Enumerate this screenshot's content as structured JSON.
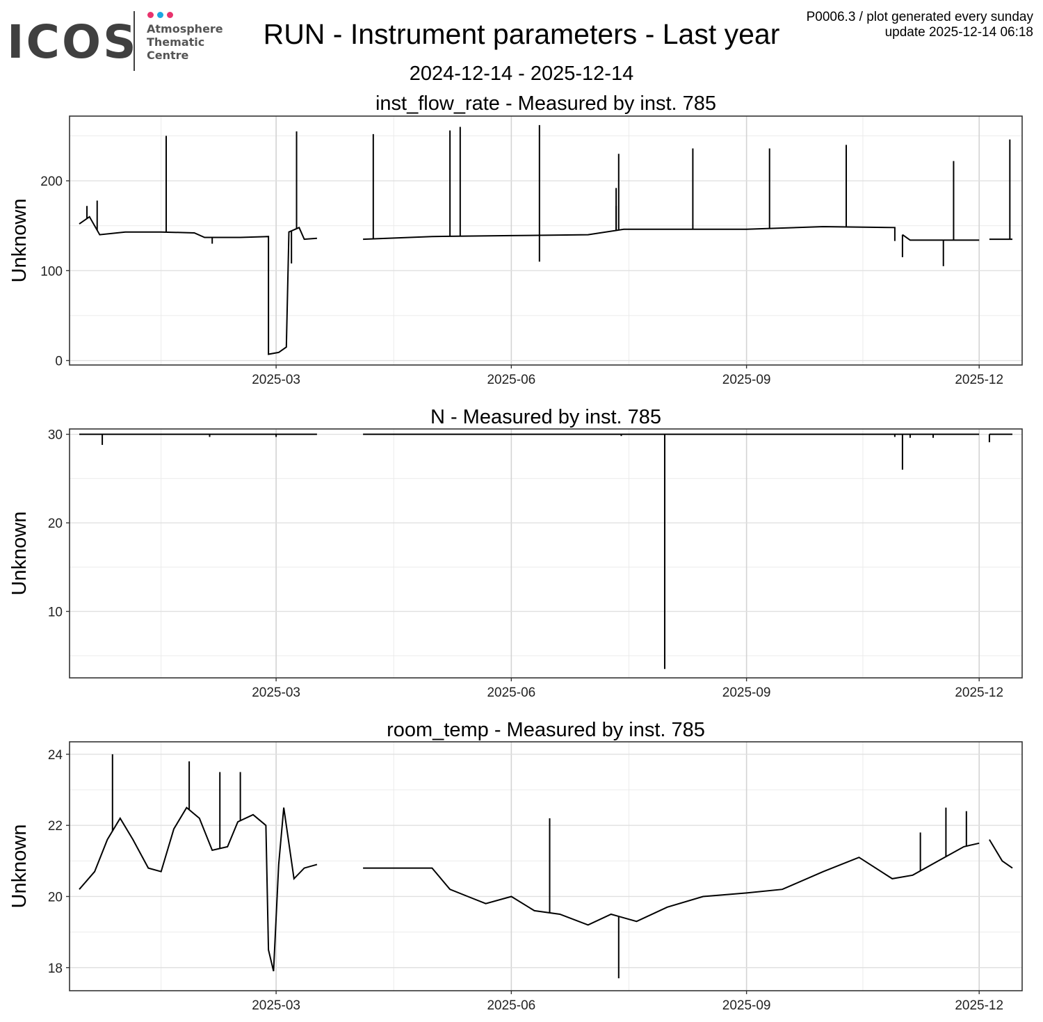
{
  "logo": {
    "wordmark": "ICOS",
    "line1": "Atmosphere",
    "line2": "Thematic",
    "line3": "Centre",
    "dot_colors": [
      "#e8336d",
      "#1ba7e1",
      "#e8336d"
    ]
  },
  "header": {
    "title": "RUN - Instrument parameters - Last year",
    "date_range": "2024-12-14 - 2025-12-14",
    "meta_line1": "P0006.3 / plot generated every sunday",
    "meta_line2": "update  2025-12-14 06:18"
  },
  "chart_data": [
    {
      "type": "line",
      "title": "inst_flow_rate - Measured by inst. 785",
      "ylabel": "Unknown",
      "xlabel": "",
      "x_range": [
        "2024-12-14",
        "2025-12-14"
      ],
      "ylim": [
        -5,
        272
      ],
      "y_ticks": [
        0,
        100,
        200
      ],
      "x_ticks": [
        "2025-03",
        "2025-06",
        "2025-09",
        "2025-12"
      ],
      "grid": true,
      "line_color": "#000000",
      "series": [
        {
          "segments": [
            [
              [
                "2024-12-14",
                152
              ],
              [
                "2024-12-18",
                160
              ],
              [
                "2024-12-22",
                140
              ],
              [
                "2025-01-01",
                143
              ],
              [
                "2025-01-15",
                143
              ],
              [
                "2025-01-28",
                142
              ],
              [
                "2025-02-01",
                137
              ],
              [
                "2025-02-15",
                137
              ],
              [
                "2025-02-26",
                138
              ],
              [
                "2025-02-26",
                7
              ],
              [
                "2025-03-02",
                9
              ],
              [
                "2025-03-05",
                15
              ],
              [
                "2025-03-06",
                143
              ],
              [
                "2025-03-10",
                148
              ],
              [
                "2025-03-12",
                135
              ],
              [
                "2025-03-17",
                136
              ]
            ],
            [
              [
                "2025-04-04",
                135
              ],
              [
                "2025-05-01",
                138
              ],
              [
                "2025-06-01",
                139
              ],
              [
                "2025-07-01",
                140
              ],
              [
                "2025-07-15",
                146
              ],
              [
                "2025-08-01",
                146
              ],
              [
                "2025-09-01",
                146
              ],
              [
                "2025-10-01",
                149
              ],
              [
                "2025-10-29",
                148
              ],
              [
                "2025-10-29",
                133
              ]
            ],
            [
              [
                "2025-11-01",
                140
              ],
              [
                "2025-11-04",
                134
              ],
              [
                "2025-12-01",
                134
              ]
            ],
            [
              [
                "2025-12-05",
                135
              ],
              [
                "2025-12-14",
                135
              ]
            ]
          ]
        }
      ],
      "spikes": [
        [
          "2024-12-17",
          172
        ],
        [
          "2024-12-21",
          178
        ],
        [
          "2025-01-17",
          250
        ],
        [
          "2025-02-04",
          130
        ],
        [
          "2025-03-07",
          108
        ],
        [
          "2025-03-09",
          255
        ],
        [
          "2025-04-08",
          252
        ],
        [
          "2025-05-08",
          256
        ],
        [
          "2025-05-12",
          260
        ],
        [
          "2025-06-12",
          262
        ],
        [
          "2025-06-12",
          110
        ],
        [
          "2025-07-13",
          230
        ],
        [
          "2025-07-12",
          192
        ],
        [
          "2025-07-12",
          172
        ],
        [
          "2025-08-11",
          236
        ],
        [
          "2025-09-10",
          236
        ],
        [
          "2025-10-10",
          240
        ],
        [
          "2025-11-01",
          115
        ],
        [
          "2025-11-17",
          105
        ],
        [
          "2025-11-21",
          222
        ],
        [
          "2025-12-13",
          246
        ]
      ]
    },
    {
      "type": "line",
      "title": "N - Measured by inst. 785",
      "ylabel": "Unknown",
      "xlabel": "",
      "x_range": [
        "2024-12-14",
        "2025-12-14"
      ],
      "ylim": [
        2.5,
        30.6
      ],
      "y_ticks": [
        10,
        20,
        30
      ],
      "x_ticks": [
        "2025-03",
        "2025-06",
        "2025-09",
        "2025-12"
      ],
      "grid": true,
      "line_color": "#000000",
      "series": [
        {
          "segments": [
            [
              [
                "2024-12-14",
                30
              ],
              [
                "2025-03-17",
                30
              ]
            ],
            [
              [
                "2025-04-04",
                30
              ],
              [
                "2025-12-01",
                30
              ]
            ],
            [
              [
                "2025-12-05",
                30
              ],
              [
                "2025-12-14",
                30
              ]
            ]
          ]
        }
      ],
      "spikes": [
        [
          "2024-12-23",
          28.8
        ],
        [
          "2025-02-03",
          29.7
        ],
        [
          "2025-03-01",
          29.7
        ],
        [
          "2025-07-14",
          29.8
        ],
        [
          "2025-07-31",
          3.5
        ],
        [
          "2025-10-29",
          29.7
        ],
        [
          "2025-11-01",
          26.0
        ],
        [
          "2025-11-04",
          29.6
        ],
        [
          "2025-11-13",
          29.6
        ],
        [
          "2025-12-05",
          29.1
        ]
      ]
    },
    {
      "type": "line",
      "title": "room_temp - Measured by inst. 785",
      "ylabel": "Unknown",
      "xlabel": "",
      "x_range": [
        "2024-12-14",
        "2025-12-14"
      ],
      "ylim": [
        17.35,
        24.35
      ],
      "y_ticks": [
        18,
        20,
        22,
        24
      ],
      "x_ticks": [
        "2025-03",
        "2025-06",
        "2025-09",
        "2025-12"
      ],
      "grid": true,
      "line_color": "#000000",
      "series": [
        {
          "segments": [
            [
              [
                "2024-12-14",
                20.2
              ],
              [
                "2024-12-20",
                20.7
              ],
              [
                "2024-12-25",
                21.6
              ],
              [
                "2024-12-30",
                22.2
              ],
              [
                "2025-01-04",
                21.6
              ],
              [
                "2025-01-10",
                20.8
              ],
              [
                "2025-01-15",
                20.7
              ],
              [
                "2025-01-20",
                21.9
              ],
              [
                "2025-01-25",
                22.5
              ],
              [
                "2025-01-30",
                22.2
              ],
              [
                "2025-02-04",
                21.3
              ],
              [
                "2025-02-10",
                21.4
              ],
              [
                "2025-02-14",
                22.1
              ],
              [
                "2025-02-20",
                22.3
              ],
              [
                "2025-02-25",
                22.0
              ],
              [
                "2025-02-26",
                18.5
              ],
              [
                "2025-02-28",
                17.9
              ],
              [
                "2025-03-02",
                20.9
              ],
              [
                "2025-03-04",
                22.5
              ],
              [
                "2025-03-08",
                20.5
              ],
              [
                "2025-03-12",
                20.8
              ],
              [
                "2025-03-17",
                20.9
              ]
            ],
            [
              [
                "2025-04-04",
                20.8
              ],
              [
                "2025-04-15",
                20.8
              ],
              [
                "2025-05-01",
                20.8
              ],
              [
                "2025-05-08",
                20.2
              ],
              [
                "2025-05-15",
                20.0
              ],
              [
                "2025-05-22",
                19.8
              ],
              [
                "2025-06-01",
                20.0
              ],
              [
                "2025-06-10",
                19.6
              ],
              [
                "2025-06-20",
                19.5
              ],
              [
                "2025-07-01",
                19.2
              ],
              [
                "2025-07-10",
                19.5
              ],
              [
                "2025-07-20",
                19.3
              ],
              [
                "2025-08-01",
                19.7
              ],
              [
                "2025-08-15",
                20.0
              ],
              [
                "2025-09-01",
                20.1
              ],
              [
                "2025-09-15",
                20.2
              ],
              [
                "2025-10-01",
                20.7
              ],
              [
                "2025-10-15",
                21.1
              ],
              [
                "2025-10-28",
                20.5
              ],
              [
                "2025-11-05",
                20.6
              ],
              [
                "2025-11-15",
                21.0
              ],
              [
                "2025-11-25",
                21.4
              ],
              [
                "2025-12-01",
                21.5
              ]
            ],
            [
              [
                "2025-12-05",
                21.6
              ],
              [
                "2025-12-10",
                21.0
              ],
              [
                "2025-12-14",
                20.8
              ]
            ]
          ]
        }
      ],
      "spikes": [
        [
          "2024-12-27",
          24.0
        ],
        [
          "2025-01-26",
          23.8
        ],
        [
          "2025-02-07",
          23.5
        ],
        [
          "2025-02-15",
          23.5
        ],
        [
          "2025-06-16",
          22.2
        ],
        [
          "2025-07-13",
          17.7
        ],
        [
          "2025-11-08",
          21.8
        ],
        [
          "2025-11-18",
          22.5
        ],
        [
          "2025-11-26",
          22.4
        ]
      ]
    }
  ]
}
